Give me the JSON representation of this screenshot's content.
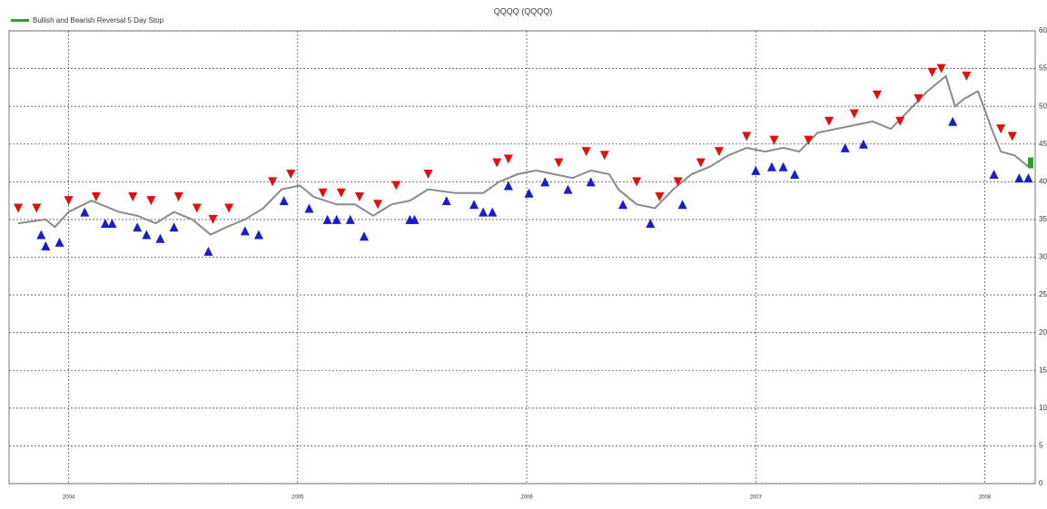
{
  "chart_data": {
    "type": "line",
    "title": "QQQQ (QQQQ)",
    "series": [
      {
        "name": "Bullish and Bearish Reversal 5 Day Stop",
        "color": "#2e9e2e",
        "x": [
          2008.2
        ],
        "values": [
          42.5
        ]
      }
    ],
    "price": {
      "color": "#8a8a8a",
      "x": [
        2003.78,
        2003.9,
        2003.94,
        2004.0,
        2004.1,
        2004.14,
        2004.22,
        2004.3,
        2004.38,
        2004.46,
        2004.54,
        2004.62,
        2004.69,
        2004.77,
        2004.85,
        2004.93,
        2005.01,
        2005.07,
        2005.17,
        2005.25,
        2005.33,
        2005.41,
        2005.49,
        2005.57,
        2005.69,
        2005.81,
        2005.88,
        2005.96,
        2006.04,
        2006.12,
        2006.2,
        2006.28,
        2006.36,
        2006.4,
        2006.48,
        2006.56,
        2006.64,
        2006.72,
        2006.8,
        2006.88,
        2006.96,
        2007.04,
        2007.12,
        2007.19,
        2007.27,
        2007.35,
        2007.43,
        2007.51,
        2007.59,
        2007.67,
        2007.75,
        2007.83,
        2007.87,
        2007.91,
        2007.97,
        2008.03,
        2008.07,
        2008.13,
        2008.19
      ],
      "values": [
        34.5,
        35,
        34,
        36,
        37.5,
        37,
        36,
        35.5,
        34.5,
        36,
        35,
        33,
        34,
        35,
        36.5,
        39,
        39.5,
        38,
        37,
        37,
        35.5,
        37,
        37.5,
        39,
        38.5,
        38.5,
        40,
        41,
        41.5,
        41,
        40.5,
        41.5,
        41,
        39,
        37,
        36.5,
        39,
        41,
        42,
        43.5,
        44.5,
        44,
        44.5,
        44,
        46.5,
        47,
        47.5,
        48,
        47,
        49.5,
        52,
        54,
        50,
        51,
        52,
        47,
        44,
        43.5,
        42
      ]
    },
    "bearish": {
      "color": "#e01010",
      "x": [
        2003.78,
        2003.86,
        2004.0,
        2004.12,
        2004.28,
        2004.36,
        2004.48,
        2004.56,
        2004.63,
        2004.7,
        2004.89,
        2004.97,
        2005.11,
        2005.19,
        2005.27,
        2005.35,
        2005.43,
        2005.57,
        2005.87,
        2005.92,
        2006.14,
        2006.26,
        2006.34,
        2006.48,
        2006.58,
        2006.66,
        2006.76,
        2006.84,
        2006.96,
        2007.08,
        2007.23,
        2007.32,
        2007.43,
        2007.53,
        2007.63,
        2007.71,
        2007.77,
        2007.81,
        2007.92,
        2008.07,
        2008.12
      ],
      "values": [
        36.5,
        36.5,
        37.5,
        38,
        38,
        37.5,
        38,
        36.5,
        35,
        36.5,
        40,
        41,
        38.5,
        38.5,
        38,
        37,
        39.5,
        41,
        42.5,
        43,
        42.5,
        44,
        43.5,
        40,
        38,
        40,
        42.5,
        44,
        46,
        45.5,
        45.5,
        48,
        49,
        51.5,
        48,
        51,
        54.5,
        55,
        54,
        47,
        46
      ]
    },
    "bullish": {
      "color": "#1a1ad0",
      "x": [
        2003.88,
        2003.9,
        2003.96,
        2004.07,
        2004.16,
        2004.19,
        2004.3,
        2004.34,
        2004.4,
        2004.46,
        2004.61,
        2004.77,
        2004.83,
        2004.94,
        2005.05,
        2005.13,
        2005.17,
        2005.23,
        2005.29,
        2005.49,
        2005.51,
        2005.65,
        2005.77,
        2005.81,
        2005.85,
        2005.92,
        2006.01,
        2006.08,
        2006.18,
        2006.28,
        2006.42,
        2006.54,
        2006.68,
        2007.0,
        2007.07,
        2007.12,
        2007.17,
        2007.39,
        2007.47,
        2007.86,
        2008.04,
        2008.15,
        2008.19
      ],
      "values": [
        33,
        31.5,
        32,
        36,
        34.5,
        34.5,
        34,
        33,
        32.5,
        34,
        30.8,
        33.5,
        33,
        37.5,
        36.5,
        35,
        35,
        35,
        32.8,
        35,
        35,
        37.5,
        37,
        36,
        36,
        39.5,
        38.5,
        40,
        39,
        40,
        37,
        34.5,
        37,
        41.5,
        42,
        42,
        41,
        44.5,
        45,
        48,
        41,
        40.5,
        40.5
      ]
    },
    "xlim": [
      2003.74,
      2008.22
    ],
    "xticks": [
      2004,
      2005,
      2006,
      2007,
      2008
    ],
    "ylim": [
      0,
      60
    ],
    "yticks": [
      0,
      5,
      10,
      15,
      20,
      25,
      30,
      35,
      40,
      45,
      50,
      55,
      60
    ],
    "grid": true
  }
}
